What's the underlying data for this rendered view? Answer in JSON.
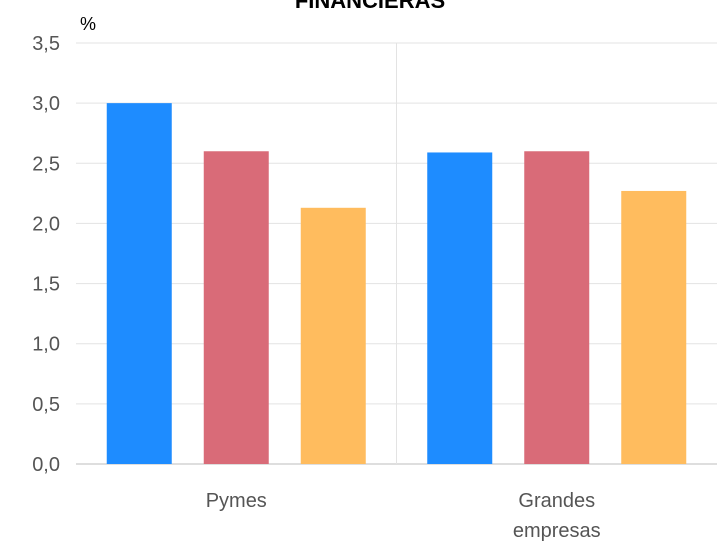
{
  "chart_data": {
    "type": "bar",
    "title": "FINANCIERAS",
    "ylabel": "%",
    "xlabel": "",
    "categories": [
      [
        "Pymes"
      ],
      [
        "Grandes",
        "empresas"
      ]
    ],
    "series": [
      {
        "color": "#1e8cff",
        "values": [
          3.0,
          2.59
        ]
      },
      {
        "color": "#d96b78",
        "values": [
          2.6,
          2.6
        ]
      },
      {
        "color": "#ffbc5e",
        "values": [
          2.13,
          2.27
        ]
      }
    ],
    "ylim": [
      0,
      3.5
    ],
    "yticks": [
      "0,0",
      "0,5",
      "1,0",
      "1,5",
      "2,0",
      "2,5",
      "3,0",
      "3,5"
    ],
    "ytick_values": [
      0,
      0.5,
      1,
      1.5,
      2,
      2.5,
      3,
      3.5
    ],
    "grid": true
  }
}
